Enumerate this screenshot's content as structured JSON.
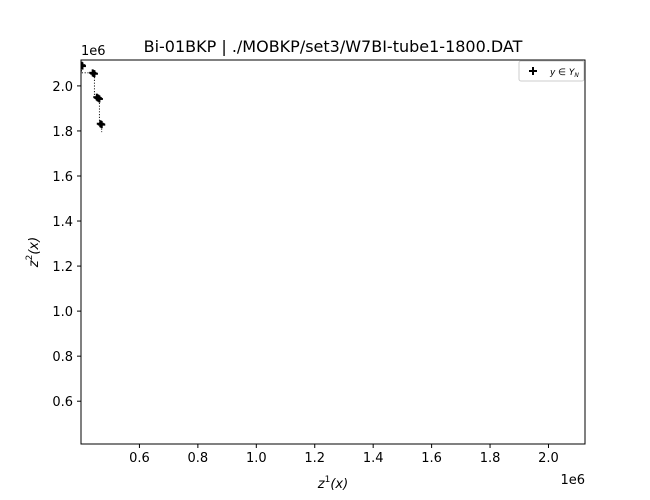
{
  "chart_data": {
    "type": "scatter",
    "title": "Bi-01BKP | ./MOBKP/set3/W7BI-tube1-1800.DAT",
    "xlabel": "z¹(x)",
    "ylabel": "z²(x)",
    "x_offset_label": "1e6",
    "y_offset_label": "1e6",
    "xlim": [
      400000,
      2125000
    ],
    "ylim": [
      410000,
      2115000
    ],
    "x_ticks": [
      {
        "value": 600000,
        "label": "0.6"
      },
      {
        "value": 800000,
        "label": "0.8"
      },
      {
        "value": 1000000,
        "label": "1.0"
      },
      {
        "value": 1200000,
        "label": "1.2"
      },
      {
        "value": 1400000,
        "label": "1.4"
      },
      {
        "value": 1600000,
        "label": "1.6"
      },
      {
        "value": 1800000,
        "label": "1.8"
      },
      {
        "value": 2000000,
        "label": "2.0"
      }
    ],
    "y_ticks": [
      {
        "value": 600000,
        "label": "0.6"
      },
      {
        "value": 800000,
        "label": "0.8"
      },
      {
        "value": 1000000,
        "label": "1.0"
      },
      {
        "value": 1200000,
        "label": "1.2"
      },
      {
        "value": 1400000,
        "label": "1.4"
      },
      {
        "value": 1600000,
        "label": "1.6"
      },
      {
        "value": 1800000,
        "label": "1.8"
      },
      {
        "value": 2000000,
        "label": "2.0"
      }
    ],
    "grid": false,
    "legend_position": "top-right",
    "series": [
      {
        "name": "y ∈ Y_N",
        "marker": "plus",
        "color": "#000000",
        "points": [
          {
            "x": 402000,
            "y": 2092000
          },
          {
            "x": 404000,
            "y": 2090000
          },
          {
            "x": 405000,
            "y": 2088000
          },
          {
            "x": 440000,
            "y": 2058000
          },
          {
            "x": 443000,
            "y": 2055000
          },
          {
            "x": 446000,
            "y": 2054000
          },
          {
            "x": 454000,
            "y": 1950000
          },
          {
            "x": 457000,
            "y": 1947000
          },
          {
            "x": 460000,
            "y": 1945000
          },
          {
            "x": 463000,
            "y": 1942000
          },
          {
            "x": 466000,
            "y": 1832000
          },
          {
            "x": 469000,
            "y": 1830000
          },
          {
            "x": 471000,
            "y": 1828000
          }
        ]
      }
    ],
    "attainment_line": {
      "style": "dotted",
      "color": "#000000",
      "steps": [
        {
          "x": 400000,
          "y": 2092000
        },
        {
          "x": 402000,
          "y": 2092000
        },
        {
          "x": 402000,
          "y": 2058000
        },
        {
          "x": 440000,
          "y": 2058000
        },
        {
          "x": 440000,
          "y": 2054000
        },
        {
          "x": 446000,
          "y": 2054000
        },
        {
          "x": 446000,
          "y": 1950000
        },
        {
          "x": 454000,
          "y": 1950000
        },
        {
          "x": 454000,
          "y": 1942000
        },
        {
          "x": 463000,
          "y": 1942000
        },
        {
          "x": 463000,
          "y": 1832000
        },
        {
          "x": 466000,
          "y": 1832000
        },
        {
          "x": 466000,
          "y": 1828000
        },
        {
          "x": 471000,
          "y": 1828000
        },
        {
          "x": 471000,
          "y": 1795000
        }
      ]
    }
  }
}
